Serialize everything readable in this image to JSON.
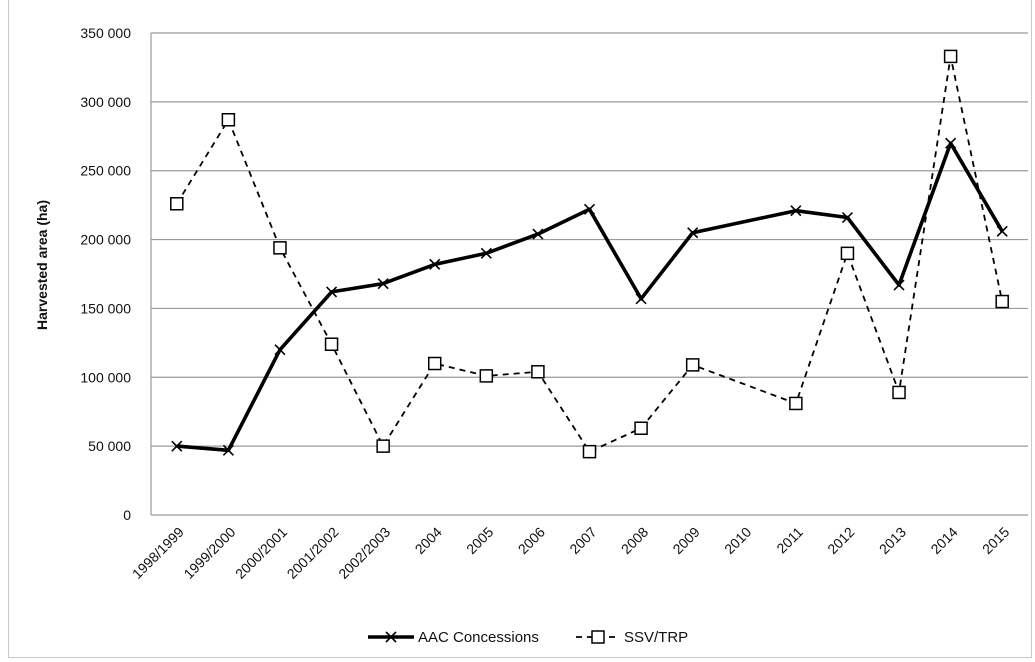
{
  "chart_data": {
    "type": "line",
    "ylabel": "Harvested area (ha)",
    "ylim": [
      0,
      350000
    ],
    "yticks": [
      0,
      50000,
      100000,
      150000,
      200000,
      250000,
      300000,
      350000
    ],
    "ytick_labels": [
      "0",
      "50 000",
      "100 000",
      "150 000",
      "200 000",
      "250 000",
      "300 000",
      "350 000"
    ],
    "categories": [
      "1998/1999",
      "1999/2000",
      "2000/2001",
      "2001/2002",
      "2002/2003",
      "2004",
      "2005",
      "2006",
      "2007",
      "2008",
      "2009",
      "2010",
      "2011",
      "2012",
      "2013",
      "2014",
      "2015"
    ],
    "grid": true,
    "legend_position": "bottom",
    "series": [
      {
        "name": "AAC Concessions",
        "style": "solid-thick",
        "marker": "x",
        "color": "#000000",
        "values": [
          50000,
          47000,
          120000,
          162000,
          168000,
          182000,
          190000,
          204000,
          222000,
          157000,
          205000,
          null,
          221000,
          216000,
          167000,
          270000,
          206000
        ]
      },
      {
        "name": "SSV/TRP",
        "style": "dashed",
        "marker": "square",
        "color": "#000000",
        "values": [
          226000,
          287000,
          194000,
          124000,
          50000,
          110000,
          101000,
          104000,
          46000,
          63000,
          109000,
          null,
          81000,
          190000,
          89000,
          333000,
          155000
        ]
      }
    ]
  }
}
